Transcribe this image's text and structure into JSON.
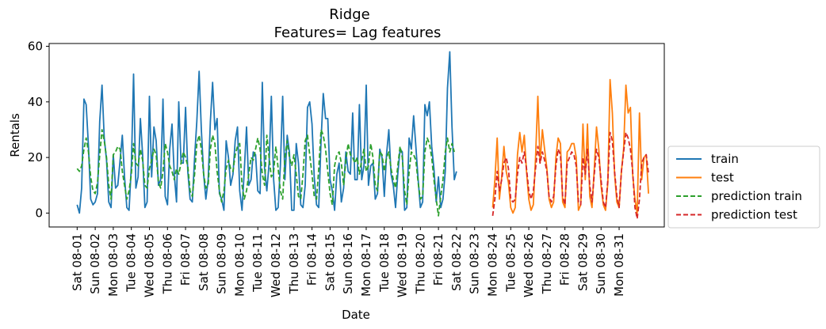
{
  "chart_data": {
    "type": "line",
    "title": "Ridge",
    "subtitle": "Features= Lag features",
    "xlabel": "Date",
    "ylabel": "Rentals",
    "ylim": [
      -5,
      61
    ],
    "yticks": [
      0,
      20,
      40,
      60
    ],
    "xlim_days": [
      -1.55,
      32.5
    ],
    "x_ticks": [
      "Sat 08-01",
      "Sun 08-02",
      "Mon 08-03",
      "Tue 08-04",
      "Wed 08-05",
      "Thu 08-06",
      "Fri 08-07",
      "Sat 08-08",
      "Sun 08-09",
      "Mon 08-10",
      "Tue 08-11",
      "Wed 08-12",
      "Thu 08-13",
      "Fri 08-14",
      "Sat 08-15",
      "Sun 08-16",
      "Mon 08-17",
      "Tue 08-18",
      "Wed 08-19",
      "Thu 08-20",
      "Fri 08-21",
      "Sat 08-22",
      "Sun 08-23",
      "Mon 08-24",
      "Tue 08-25",
      "Wed 08-26",
      "Thu 08-27",
      "Fri 08-28",
      "Sat 08-29",
      "Sun 08-30",
      "Mon 08-31"
    ],
    "grid": false,
    "legend_position": "right",
    "legend": [
      {
        "label": "train",
        "color": "#1f77b4",
        "style": "solid"
      },
      {
        "label": "test",
        "color": "#ff7f0e",
        "style": "solid"
      },
      {
        "label": "prediction train",
        "color": "#2ca02c",
        "style": "dashed"
      },
      {
        "label": "prediction test",
        "color": "#d62728",
        "style": "dashed"
      }
    ],
    "series": [
      {
        "name": "train",
        "color": "#1f77b4",
        "style": "solid",
        "x_start": 0,
        "values": [
          3,
          0,
          9,
          41,
          39,
          24,
          5,
          3,
          4,
          7,
          33,
          46,
          27,
          19,
          4,
          2,
          21,
          9,
          10,
          19,
          28,
          13,
          2,
          1,
          17,
          50,
          9,
          13,
          34,
          21,
          2,
          4,
          42,
          13,
          31,
          26,
          10,
          12,
          41,
          6,
          3,
          23,
          32,
          14,
          4,
          40,
          18,
          18,
          38,
          15,
          5,
          4,
          20,
          33,
          51,
          30,
          14,
          5,
          12,
          33,
          47,
          30,
          34,
          7,
          5,
          1,
          26,
          20,
          10,
          14,
          26,
          31,
          8,
          1,
          15,
          31,
          10,
          12,
          22,
          21,
          8,
          7,
          47,
          16,
          8,
          18,
          42,
          12,
          1,
          2,
          17,
          42,
          12,
          28,
          22,
          1,
          1,
          25,
          18,
          3,
          2,
          10,
          38,
          40,
          32,
          13,
          3,
          2,
          26,
          43,
          34,
          34,
          12,
          8,
          1,
          14,
          18,
          4,
          9,
          22,
          15,
          14,
          36,
          12,
          12,
          39,
          12,
          17,
          46,
          10,
          17,
          18,
          5,
          7,
          23,
          20,
          6,
          21,
          30,
          14,
          10,
          2,
          14,
          23,
          22,
          1,
          2,
          27,
          23,
          35,
          24,
          12,
          2,
          4,
          39,
          35,
          40,
          24,
          16,
          4,
          13,
          2,
          5,
          15,
          45,
          58,
          31,
          12,
          15
        ]
      },
      {
        "name": "test",
        "color": "#ff7f0e",
        "style": "solid",
        "x_start": 23,
        "values": [
          2,
          12,
          27,
          5,
          13,
          24,
          15,
          11,
          2,
          0,
          2,
          21,
          29,
          22,
          28,
          15,
          5,
          1,
          3,
          20,
          42,
          18,
          30,
          23,
          16,
          5,
          2,
          4,
          20,
          27,
          25,
          4,
          2,
          22,
          23,
          25,
          25,
          20,
          1,
          3,
          32,
          12,
          32,
          6,
          2,
          16,
          31,
          23,
          10,
          3,
          1,
          11,
          48,
          36,
          14,
          4,
          2,
          15,
          23,
          46,
          36,
          38,
          14,
          5,
          0,
          36,
          12,
          20,
          21,
          7
        ]
      },
      {
        "name": "prediction train",
        "color": "#2ca02c",
        "style": "dashed",
        "x_start": 0,
        "values": [
          16,
          15,
          17,
          23,
          27,
          22,
          13,
          8,
          7,
          11,
          21,
          30,
          26,
          20,
          10,
          5,
          21,
          22,
          24,
          23,
          15,
          10,
          5,
          8,
          14,
          25,
          18,
          17,
          23,
          19,
          10,
          9,
          16,
          19,
          23,
          21,
          11,
          9,
          15,
          25,
          22,
          17,
          15,
          12,
          16,
          14,
          18,
          22,
          20,
          17,
          8,
          6,
          14,
          25,
          28,
          23,
          14,
          9,
          10,
          23,
          28,
          25,
          15,
          8,
          4,
          8,
          16,
          19,
          16,
          15,
          21,
          24,
          25,
          10,
          5,
          8,
          14,
          20,
          19,
          23,
          27,
          23,
          14,
          10,
          28,
          20,
          13,
          15,
          24,
          16,
          8,
          5,
          20,
          26,
          20,
          17,
          21,
          14,
          6,
          5,
          14,
          26,
          28,
          21,
          14,
          6,
          5,
          16,
          30,
          28,
          23,
          15,
          7,
          3,
          17,
          21,
          22,
          18,
          10,
          19,
          25,
          21,
          20,
          18,
          20,
          14,
          19,
          23,
          15,
          17,
          25,
          20,
          10,
          8,
          22,
          21,
          15,
          20,
          22,
          16,
          12,
          9,
          17,
          24,
          20,
          8,
          3,
          15,
          22,
          21,
          19,
          11,
          5,
          6,
          22,
          27,
          25,
          20,
          12,
          5,
          -1,
          6,
          12,
          22,
          27,
          22,
          25,
          22
        ]
      },
      {
        "name": "prediction test",
        "color": "#d62728",
        "style": "dashed",
        "x_start": 23,
        "values": [
          -1,
          5,
          15,
          8,
          12,
          18,
          20,
          16,
          5,
          4,
          5,
          14,
          20,
          18,
          22,
          16,
          8,
          5,
          8,
          16,
          24,
          18,
          22,
          19,
          15,
          6,
          4,
          6,
          17,
          23,
          21,
          6,
          3,
          18,
          20,
          22,
          21,
          17,
          4,
          3,
          20,
          14,
          23,
          10,
          4,
          14,
          23,
          20,
          12,
          4,
          2,
          12,
          29,
          26,
          15,
          6,
          2,
          15,
          22,
          29,
          27,
          23,
          15,
          2,
          -2,
          5,
          18,
          20,
          21,
          14
        ]
      }
    ]
  }
}
